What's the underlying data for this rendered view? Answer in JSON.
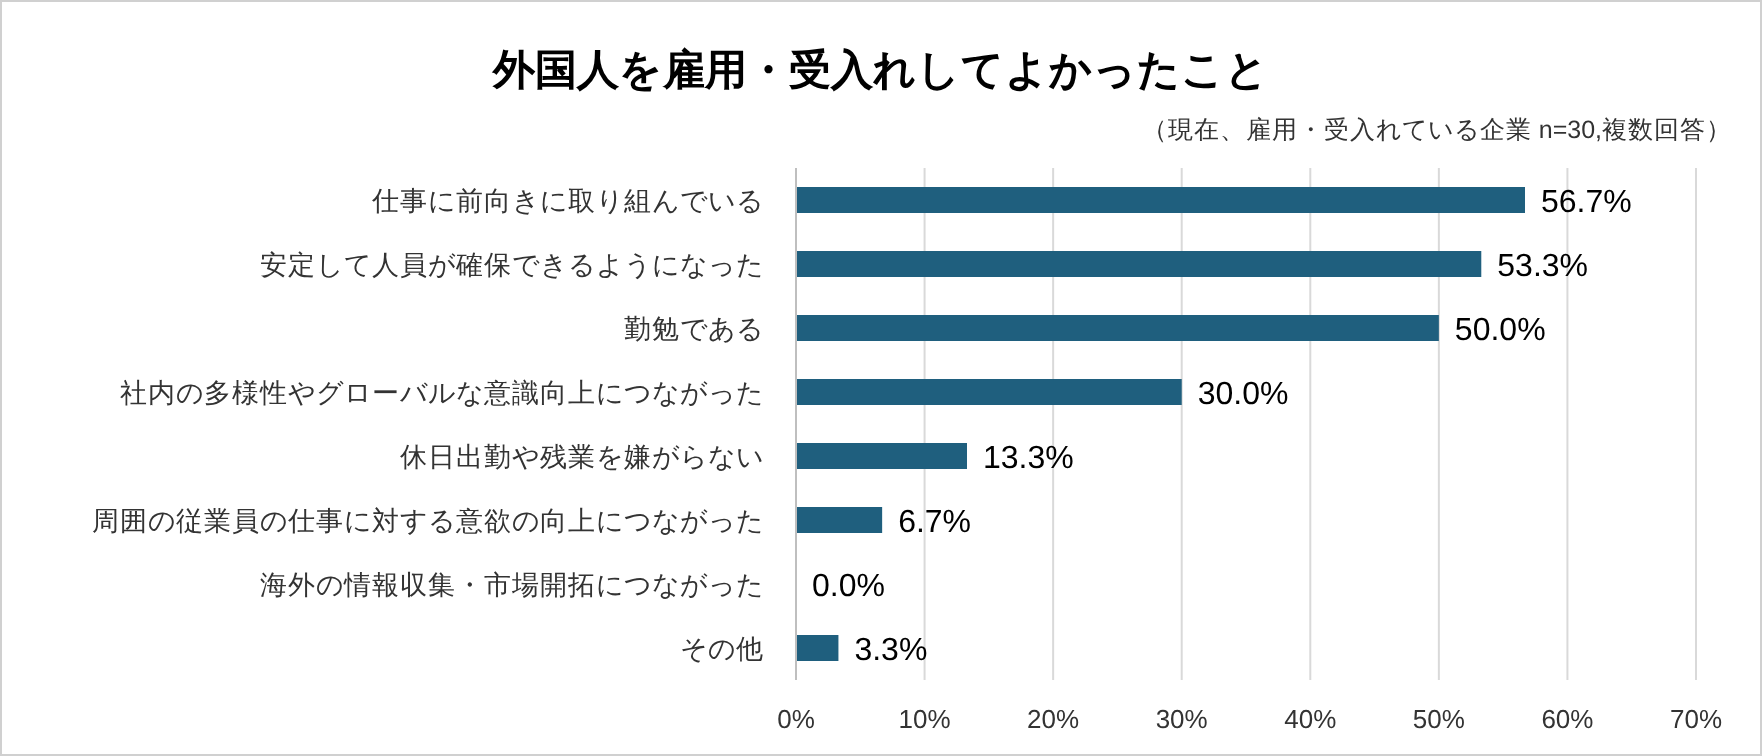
{
  "chart_data": {
    "type": "bar",
    "orientation": "horizontal",
    "title": "外国人を雇用・受入れしてよかったこと",
    "subtitle": "（現在、雇用・受入れている企業 n=30,複数回答）",
    "categories": [
      "仕事に前向きに取り組んでいる",
      "安定して人員が確保できるようになった",
      "勤勉である",
      "社内の多様性やグローバルな意識向上につながった",
      "休日出勤や残業を嫌がらない",
      "周囲の従業員の仕事に対する意欲の向上につながった",
      "海外の情報収集・市場開拓につながった",
      "その他"
    ],
    "values": [
      56.7,
      53.3,
      50.0,
      30.0,
      13.3,
      6.7,
      0.0,
      3.3
    ],
    "value_labels": [
      "56.7%",
      "53.3%",
      "50.0%",
      "30.0%",
      "13.3%",
      "6.7%",
      "0.0%",
      "3.3%"
    ],
    "color": "#1f5f7e",
    "xlim": [
      0,
      70
    ],
    "xticks": [
      {
        "value": 0,
        "label": "0%"
      },
      {
        "value": 10,
        "label": "10%"
      },
      {
        "value": 20,
        "label": "20%"
      },
      {
        "value": 30,
        "label": "30%"
      },
      {
        "value": 40,
        "label": "40%"
      },
      {
        "value": 50,
        "label": "50%"
      },
      {
        "value": 60,
        "label": "60%"
      },
      {
        "value": 70,
        "label": "70%"
      }
    ],
    "grid": "x"
  }
}
